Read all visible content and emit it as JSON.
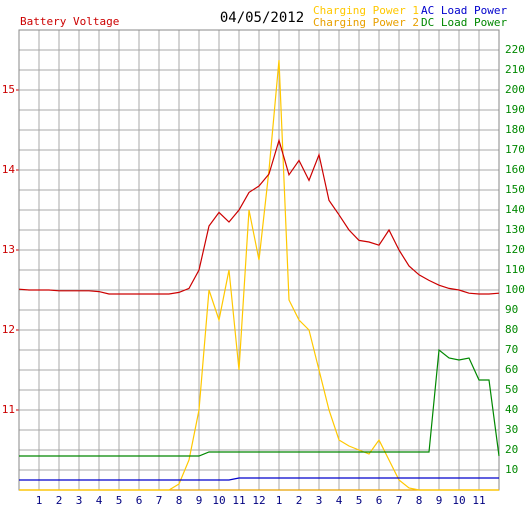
{
  "chart_data": {
    "type": "line",
    "title": "04/05/2012",
    "x": [
      0,
      0.5,
      1,
      1.5,
      2,
      2.5,
      3,
      3.5,
      4,
      4.5,
      5,
      5.5,
      6,
      6.5,
      7,
      7.5,
      8,
      8.5,
      9,
      9.5,
      10,
      10.5,
      11,
      11.5,
      12,
      12.5,
      13,
      13.5,
      14,
      14.5,
      15,
      15.5,
      16,
      16.5,
      17,
      17.5,
      18,
      18.5,
      19,
      19.5,
      20,
      20.5,
      21,
      21.5,
      22,
      22.5,
      23,
      23.5,
      24
    ],
    "xlim": [
      0,
      24
    ],
    "xticks": [
      1,
      2,
      3,
      4,
      5,
      6,
      7,
      8,
      9,
      10,
      11,
      12,
      {
        "value": 13,
        "label": "1"
      },
      {
        "value": 14,
        "label": "2"
      },
      {
        "value": 15,
        "label": "3"
      },
      {
        "value": 16,
        "label": "4"
      },
      {
        "value": 17,
        "label": "5"
      },
      {
        "value": 18,
        "label": "6"
      },
      {
        "value": 19,
        "label": "7"
      },
      {
        "value": 20,
        "label": "8"
      },
      {
        "value": 21,
        "label": "9"
      },
      {
        "value": 22,
        "label": "10"
      },
      {
        "value": 23,
        "label": "11"
      }
    ],
    "ylim": [
      10,
      15.75
    ],
    "yticks": [
      11,
      12,
      13,
      14,
      15
    ],
    "y2lim": [
      0,
      230
    ],
    "y2ticks": [
      10,
      20,
      30,
      40,
      50,
      60,
      70,
      80,
      90,
      100,
      110,
      120,
      130,
      140,
      150,
      160,
      170,
      180,
      190,
      200,
      210,
      220
    ],
    "grid": true,
    "series": [
      {
        "name": "Battery Voltage",
        "color": "#cc0000",
        "values": [
          12.51,
          12.5,
          12.5,
          12.5,
          12.49,
          12.49,
          12.49,
          12.49,
          12.48,
          12.45,
          12.45,
          12.45,
          12.45,
          12.45,
          12.45,
          12.45,
          12.47,
          12.52,
          12.75,
          13.3,
          13.47,
          13.35,
          13.5,
          13.72,
          13.8,
          13.95,
          14.37,
          13.94,
          14.12,
          13.87,
          14.19,
          13.62,
          13.44,
          13.25,
          13.12,
          13.1,
          13.06,
          13.25,
          13.0,
          12.8,
          12.69,
          12.62,
          12.56,
          12.52,
          12.5,
          12.46,
          12.45,
          12.45,
          12.46
        ]
      },
      {
        "name": "Charging Power 1",
        "color": "#ffc800",
        "axis": "y2",
        "values": [
          0,
          0,
          0,
          0,
          0,
          0,
          0,
          0,
          0,
          0,
          0,
          0,
          0,
          0,
          0,
          0,
          3,
          15,
          40,
          100,
          85,
          110,
          60,
          140,
          115,
          160,
          215,
          95,
          85,
          80,
          60,
          40,
          25,
          22,
          20,
          18,
          25,
          15,
          5,
          1,
          0,
          0,
          0,
          0,
          0,
          0,
          0,
          0,
          0
        ]
      },
      {
        "name": "Charging Power 2",
        "color": "#e8a000",
        "axis": "y2",
        "values": [
          0,
          0,
          0,
          0,
          0,
          0,
          0,
          0,
          0,
          0,
          0,
          0,
          0,
          0,
          0,
          0,
          0,
          0,
          0,
          0,
          0,
          0,
          0,
          0,
          0,
          0,
          0,
          0,
          0,
          0,
          0,
          0,
          0,
          0,
          0,
          0,
          0,
          0,
          0,
          0,
          0,
          0,
          0,
          0,
          0,
          0,
          0,
          0,
          0
        ]
      },
      {
        "name": "AC Load Power",
        "color": "#0000cc",
        "axis": "y2",
        "values": [
          5,
          5,
          5,
          5,
          5,
          5,
          5,
          5,
          5,
          5,
          5,
          5,
          5,
          5,
          5,
          5,
          5,
          5,
          5,
          5,
          5,
          5,
          6,
          6,
          6,
          6,
          6,
          6,
          6,
          6,
          6,
          6,
          6,
          6,
          6,
          6,
          6,
          6,
          6,
          6,
          6,
          6,
          6,
          6,
          6,
          6,
          6,
          6,
          6
        ]
      },
      {
        "name": "DC Load Power",
        "color": "#008800",
        "axis": "y2",
        "values": [
          17,
          17,
          17,
          17,
          17,
          17,
          17,
          17,
          17,
          17,
          17,
          17,
          17,
          17,
          17,
          17,
          17,
          17,
          17,
          19,
          19,
          19,
          19,
          19,
          19,
          19,
          19,
          19,
          19,
          19,
          19,
          19,
          19,
          19,
          19,
          19,
          19,
          19,
          19,
          19,
          19,
          19,
          70,
          66,
          65,
          66,
          55,
          55,
          17
        ]
      }
    ]
  }
}
